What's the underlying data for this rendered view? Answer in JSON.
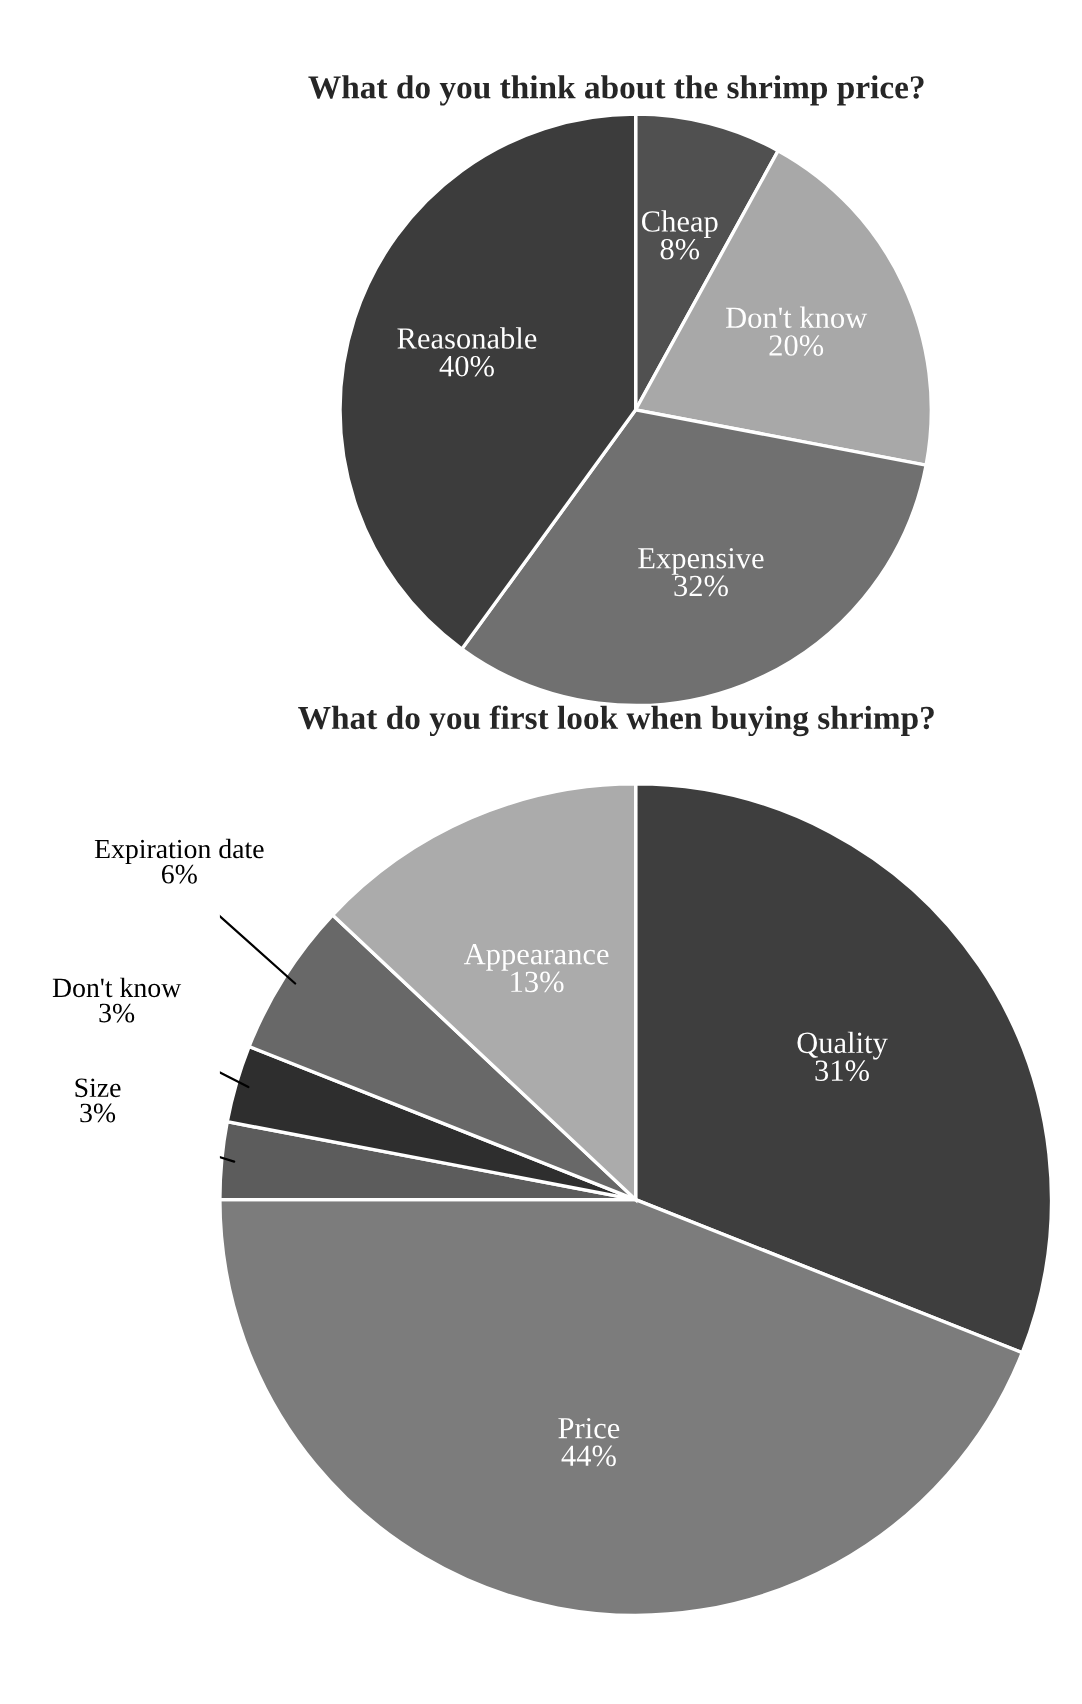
{
  "chart_data": [
    {
      "type": "pie",
      "title": "What do you think about the shrimp price?",
      "categories": [
        "Cheap",
        "Don't know",
        "Expensive",
        "Reasonable"
      ],
      "values": [
        8,
        20,
        32,
        40
      ],
      "value_labels": [
        "8%",
        "20%",
        "32%",
        "40%"
      ],
      "colors": [
        "#505050",
        "#a8a8a8",
        "#707070",
        "#3c3c3c"
      ]
    },
    {
      "type": "pie",
      "title": "What do you first look when buying shrimp?",
      "categories": [
        "Quality",
        "Price",
        "Size",
        "Don't know",
        "Expiration date",
        "Appearance"
      ],
      "values": [
        31,
        44,
        3,
        3,
        6,
        13
      ],
      "value_labels": [
        "31%",
        "44%",
        "3%",
        "3%",
        "6%",
        "13%"
      ],
      "colors": [
        "#3e3e3e",
        "#7c7c7c",
        "#5c5c5c",
        "#2e2e2e",
        "#686868",
        "#ababab"
      ]
    }
  ]
}
